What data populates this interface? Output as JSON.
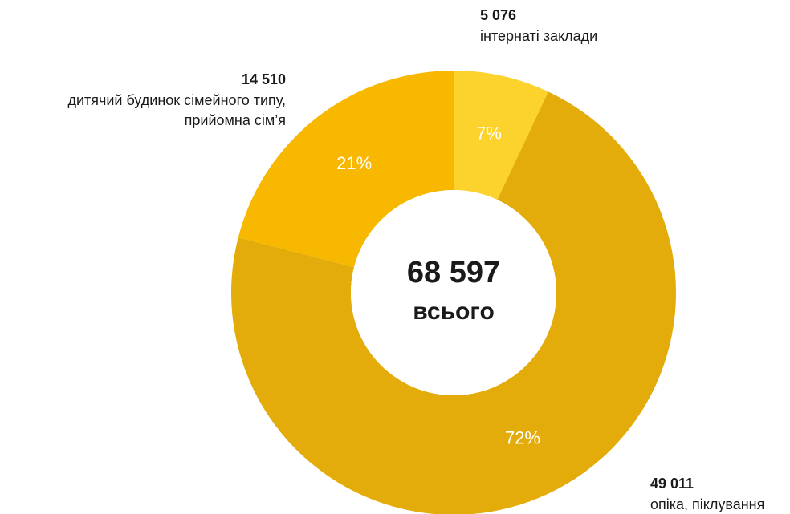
{
  "chart_data": {
    "type": "donut",
    "categories": [
      [
        "інтернаті заклади"
      ],
      [
        "опіка, піклування"
      ],
      [
        "дитячий будинок сімейного типу,",
        "прийомна сім’я"
      ]
    ],
    "values": [
      7,
      72,
      21
    ],
    "value_labels": [
      "7%",
      "72%",
      "21%"
    ],
    "counts": [
      5076,
      49011,
      14510
    ],
    "count_labels": [
      "5 076",
      "49 011",
      "14 510"
    ],
    "colors": [
      "#fcd22c",
      "#e4ac0a",
      "#f8b800"
    ],
    "total": 68597,
    "total_label": "68 597",
    "total_caption": "всього"
  }
}
